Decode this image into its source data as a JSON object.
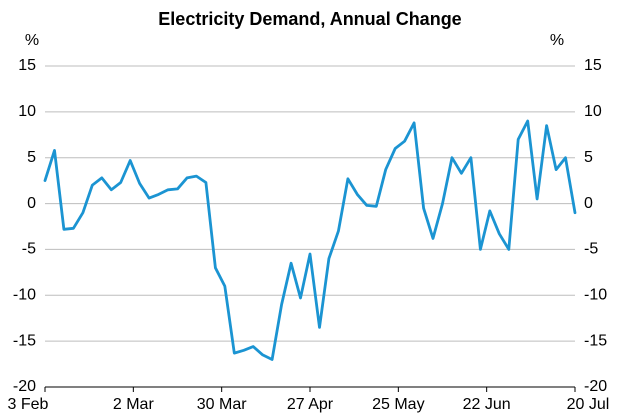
{
  "chart_data": {
    "type": "line",
    "title": "Electricity Demand, Annual Change",
    "y_label": "%",
    "y2_label": "%",
    "x": [
      "3 Feb",
      "6 Feb",
      "9 Feb",
      "12 Feb",
      "15 Feb",
      "18 Feb",
      "21 Feb",
      "24 Feb",
      "27 Feb",
      "1 Mar",
      "4 Mar",
      "7 Mar",
      "10 Mar",
      "13 Mar",
      "16 Mar",
      "19 Mar",
      "22 Mar",
      "25 Mar",
      "28 Mar",
      "31 Mar",
      "3 Apr",
      "6 Apr",
      "9 Apr",
      "12 Apr",
      "15 Apr",
      "18 Apr",
      "21 Apr",
      "24 Apr",
      "27 Apr",
      "30 Apr",
      "3 May",
      "6 May",
      "9 May",
      "12 May",
      "15 May",
      "18 May",
      "21 May",
      "24 May",
      "27 May",
      "30 May",
      "2 Jun",
      "5 Jun",
      "8 Jun",
      "11 Jun",
      "14 Jun",
      "17 Jun",
      "20 Jun",
      "23 Jun",
      "26 Jun",
      "29 Jun",
      "2 Jul",
      "5 Jul",
      "8 Jul",
      "11 Jul",
      "14 Jul",
      "17 Jul",
      "20 Jul"
    ],
    "series": [
      {
        "name": "Electricity demand",
        "color": "#1b94d2",
        "values": [
          2.5,
          5.8,
          -2.8,
          -2.7,
          -1,
          2,
          2.8,
          1.5,
          2.3,
          4.7,
          2.2,
          0.6,
          1,
          1.5,
          1.6,
          2.8,
          3,
          2.3,
          -7,
          -9,
          -16.3,
          -16,
          -15.6,
          -16.5,
          -17,
          -11,
          -6.5,
          -10.3,
          -5.5,
          -13.5,
          -6,
          -3,
          2.7,
          1,
          -0.2,
          -0.3,
          3.7,
          6,
          6.8,
          8.8,
          -0.5,
          -3.8,
          0,
          5,
          3.3,
          5,
          -5,
          -0.8,
          -3.3,
          -5,
          7,
          9,
          0.5,
          8.5,
          3.7,
          5,
          -1
        ]
      }
    ],
    "xlim": [
      "3 Feb",
      "20 Jul"
    ],
    "xticks": [
      "3 Feb",
      "2 Mar",
      "30 Mar",
      "27 Apr",
      "25 May",
      "22 Jun",
      "20 Jul"
    ],
    "ylim": [
      -20,
      15
    ],
    "yticks": [
      -20,
      -15,
      -10,
      -5,
      0,
      5,
      10,
      15
    ],
    "y2lim": [
      -20,
      15
    ],
    "y2ticks": [
      -20,
      -15,
      -10,
      -5,
      0,
      5,
      10,
      15
    ],
    "grid": true
  }
}
